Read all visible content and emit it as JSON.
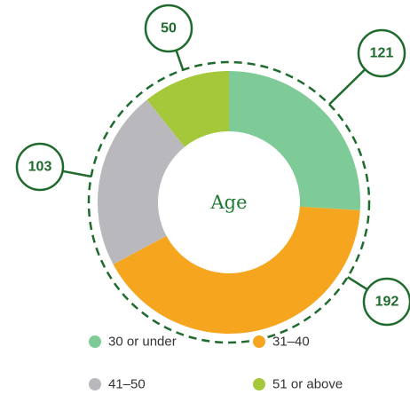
{
  "chart_data": {
    "type": "pie",
    "donut": true,
    "title": "Age",
    "categories": [
      "30 or under",
      "31–40",
      "41–50",
      "51 or above"
    ],
    "values": [
      121,
      192,
      103,
      50
    ],
    "colors": [
      "#7fcb98",
      "#f6a51e",
      "#b9b9bd",
      "#a5c83a"
    ]
  }
}
